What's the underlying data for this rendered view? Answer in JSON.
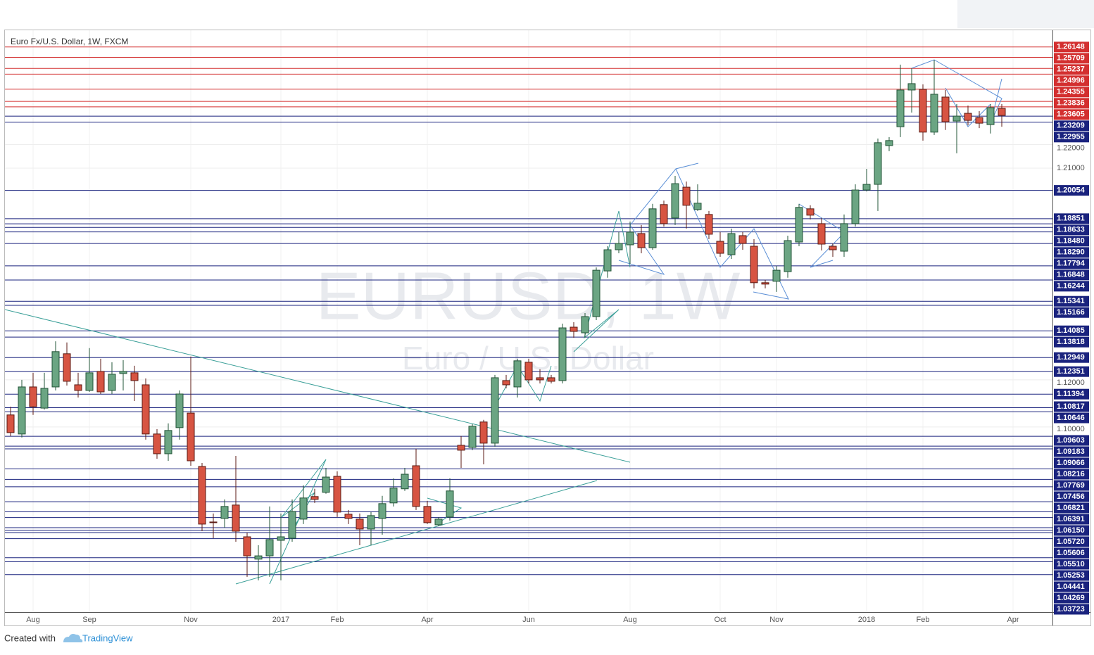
{
  "chart_data": {
    "type": "candlestick",
    "title": "Euro Fx/U.S. Dollar, 1W, FXCM",
    "watermark": "EURUSD, 1W",
    "watermark_subtitle": "Euro / U.S. Dollar",
    "footer": {
      "prefix": "Created with",
      "brand": "TradingView"
    },
    "up_color": "#6ba583",
    "down_color": "#d75442",
    "categories": [
      null,
      null,
      "Aug",
      null,
      null,
      null,
      null,
      "Sep",
      null,
      null,
      null,
      null,
      null,
      null,
      null,
      null,
      "Nov",
      null,
      null,
      null,
      null,
      null,
      null,
      null,
      "2017",
      null,
      null,
      null,
      null,
      "Feb",
      null,
      null,
      null,
      null,
      null,
      null,
      null,
      "Apr",
      null,
      null,
      null,
      null,
      null,
      null,
      null,
      null,
      "Jun",
      null,
      null,
      null,
      null,
      null,
      null,
      null,
      null,
      "Aug",
      null,
      null,
      null,
      null,
      null,
      null,
      null,
      "Oct",
      null,
      null,
      null,
      null,
      "Nov",
      null,
      null,
      null,
      null,
      null,
      null,
      null,
      "2018",
      null,
      null,
      null,
      null,
      "Feb",
      null,
      null,
      null,
      null,
      null,
      null,
      null,
      "Apr",
      null,
      null,
      null
    ],
    "open": [
      1.1051,
      1.097,
      1.117,
      1.108,
      1.117,
      1.1311,
      1.1179,
      1.1155,
      1.1236,
      1.1155,
      1.1227,
      1.123,
      1.1179,
      1.097,
      1.0886,
      1.0997,
      1.1059,
      1.0832,
      1.0596,
      1.0611,
      1.0668,
      1.0533,
      1.0438,
      1.0452,
      1.0518,
      1.0527,
      1.0608,
      1.0704,
      1.0722,
      1.079,
      1.0629,
      1.0608,
      1.0566,
      1.0611,
      1.0677,
      1.0737,
      1.0835,
      1.0662,
      1.0584,
      1.0617,
      1.0922,
      1.0913,
      1.1021,
      1.0931,
      1.1197,
      1.117,
      1.1275,
      1.1209,
      1.1209,
      1.1197,
      1.1424,
      1.14,
      1.1469,
      1.1663,
      1.1753,
      1.1774,
      1.1822,
      1.1762,
      1.1945,
      1.1888,
      1.2019,
      1.1924,
      1.1903,
      1.1789,
      1.1732,
      1.1813,
      1.1768,
      1.1613,
      1.1619,
      1.166,
      1.1786,
      1.1927,
      1.1864,
      1.1768,
      1.1747,
      1.1864,
      1.2007,
      1.2031,
      1.2196,
      1.2276,
      1.2432,
      1.2435,
      1.2253,
      1.2402,
      1.23,
      1.2333,
      1.2315,
      1.2285,
      1.2354,
      null,
      null,
      null,
      null
    ],
    "high": [
      1.1086,
      1.12,
      1.123,
      1.123,
      1.1364,
      1.1359,
      1.123,
      1.1335,
      1.129,
      1.1275,
      1.1284,
      1.126,
      1.1206,
      1.0991,
      1.1015,
      1.1155,
      1.1299,
      1.0847,
      1.0632,
      1.0692,
      1.0877,
      1.0551,
      1.0497,
      1.0662,
      1.0632,
      1.0692,
      1.0752,
      1.0737,
      1.0826,
      1.0811,
      1.0647,
      1.0632,
      1.0638,
      1.0707,
      1.0781,
      1.0826,
      1.0907,
      1.0686,
      1.0617,
      1.0781,
      1.0961,
      1.1012,
      1.103,
      1.1221,
      1.1221,
      1.129,
      1.129,
      1.1245,
      1.1221,
      1.1439,
      1.1445,
      1.1484,
      1.1678,
      1.1768,
      1.1828,
      1.1873,
      1.1858,
      1.1948,
      1.1962,
      1.2067,
      1.2043,
      1.2031,
      1.1918,
      1.1828,
      1.1843,
      1.1828,
      1.1798,
      1.1625,
      1.1684,
      1.1813,
      1.1948,
      1.1942,
      1.1888,
      1.178,
      1.1903,
      1.2031,
      1.2097,
      1.2226,
      1.2232,
      1.254,
      1.2525,
      1.2456,
      1.256,
      1.2432,
      1.2372,
      1.2366,
      1.2342,
      1.2372,
      1.2372,
      null,
      null,
      null,
      null
    ],
    "low": [
      1.0961,
      1.0955,
      1.1051,
      1.1074,
      1.1155,
      1.1176,
      1.1125,
      1.1149,
      1.114,
      1.114,
      1.1155,
      1.111,
      1.0946,
      1.0865,
      1.0856,
      1.0946,
      1.0835,
      1.0557,
      1.0527,
      1.0572,
      1.0512,
      1.0363,
      1.0348,
      1.0363,
      1.0348,
      1.0512,
      1.0587,
      1.0677,
      1.0716,
      1.0617,
      1.0587,
      1.0497,
      1.0497,
      1.0542,
      1.0662,
      1.0728,
      1.0647,
      1.0587,
      1.0578,
      1.0602,
      1.0826,
      1.0901,
      1.0841,
      1.0916,
      1.1164,
      1.1125,
      1.1185,
      1.1185,
      1.1185,
      1.1185,
      1.1379,
      1.1379,
      1.1454,
      1.1634,
      1.1738,
      1.1693,
      1.1738,
      1.1753,
      1.1852,
      1.1858,
      1.1843,
      1.1918,
      1.1798,
      1.1723,
      1.1714,
      1.1753,
      1.1589,
      1.1589,
      1.1574,
      1.1634,
      1.1768,
      1.1882,
      1.175,
      1.1723,
      1.1723,
      1.1852,
      1.2001,
      1.1918,
      1.2172,
      1.2232,
      1.2336,
      1.2217,
      1.2241,
      1.2262,
      1.2163,
      1.2282,
      1.227,
      1.2247,
      1.2276,
      null,
      null,
      null,
      null
    ],
    "close": [
      1.0976,
      1.117,
      1.1086,
      1.1164,
      1.132,
      1.1194,
      1.1155,
      1.123,
      1.1149,
      1.1224,
      1.1236,
      1.1197,
      1.097,
      1.0886,
      1.0985,
      1.114,
      1.0856,
      1.0587,
      1.0593,
      1.0662,
      1.0557,
      1.0452,
      1.0452,
      1.0521,
      1.0533,
      1.0641,
      1.0698,
      1.0692,
      1.0787,
      1.0638,
      1.0611,
      1.0566,
      1.0623,
      1.0674,
      1.074,
      1.0799,
      1.0662,
      1.0593,
      1.0608,
      1.0728,
      1.0901,
      1.1003,
      1.0931,
      1.1209,
      1.1179,
      1.1281,
      1.12,
      1.12,
      1.1194,
      1.1421,
      1.1406,
      1.1469,
      1.1666,
      1.1753,
      1.178,
      1.1828,
      1.1762,
      1.1927,
      1.1864,
      1.2034,
      1.1942,
      1.1951,
      1.1819,
      1.1738,
      1.1822,
      1.178,
      1.1613,
      1.1607,
      1.1666,
      1.1792,
      1.1933,
      1.19,
      1.1777,
      1.1753,
      1.1864,
      1.2007,
      1.2031,
      1.2208,
      1.2217,
      1.2432,
      1.2459,
      1.2253,
      1.2414,
      1.2297,
      1.2321,
      1.2303,
      1.2291,
      1.2357,
      1.2324,
      null,
      null,
      null,
      null
    ],
    "ylim": [
      1.0213,
      1.2686
    ],
    "yticks": [
      {
        "value": 1.22,
        "label": "1.22000"
      },
      {
        "value": 1.21,
        "label": "1.21000"
      },
      {
        "value": 1.12,
        "label": "1.12000"
      },
      {
        "value": 1.1,
        "label": "1.10000"
      }
    ],
    "levels": [
      1.26148,
      1.25709,
      1.25237,
      1.24996,
      1.24355,
      1.23836,
      1.23605,
      1.23209,
      1.22955,
      1.20054,
      1.18851,
      1.18633,
      {
        "value": 1.1848,
        "label": "1.18480"
      },
      {
        "value": 1.1829,
        "label": "1.18290"
      },
      1.17794,
      1.16848,
      1.16244,
      1.15341,
      1.15166,
      1.14085,
      1.13818,
      1.12949,
      1.12351,
      1.11394,
      1.10817,
      1.10646,
      1.09603,
      1.09183,
      1.09066,
      1.08216,
      1.07769,
      1.07456,
      1.06821,
      1.06391,
      {
        "value": 1.0615,
        "label": "1.06150"
      },
      {
        "value": 1.0572,
        "label": "1.05720"
      },
      1.05606,
      {
        "value": 1.0551,
        "label": "1.05510"
      },
      1.05253,
      1.04441,
      1.04269,
      1.03723
    ],
    "level_colors": [
      "#d32f2f",
      "#d32f2f",
      "#d32f2f",
      "#d32f2f",
      "#d32f2f",
      "#d32f2f",
      "#d32f2f",
      "#1a237e",
      "#1a237e",
      "#1a237e",
      "#1a237e",
      "#1a237e",
      "#1a237e",
      "#1a237e",
      "#1a237e",
      "#1a237e",
      "#1a237e",
      "#1a237e",
      "#1a237e",
      "#1a237e",
      "#1a237e",
      "#1a237e",
      "#1a237e",
      "#1a237e",
      "#1a237e",
      "#1a237e",
      "#1a237e",
      "#1a237e",
      "#1a237e",
      "#1a237e",
      "#1a237e",
      "#1a237e",
      "#1a237e",
      "#1a237e",
      "#1a237e",
      "#1a237e",
      "#1a237e",
      "#1a237e",
      "#1a237e",
      "#1a237e",
      "#1a237e",
      "#1a237e"
    ]
  }
}
